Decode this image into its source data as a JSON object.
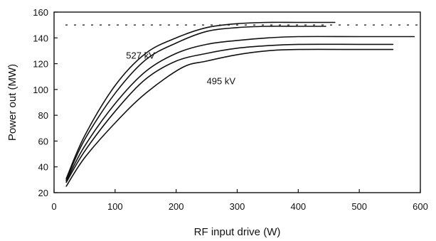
{
  "chart_data": {
    "type": "line",
    "title": "",
    "xlabel": "RF input drive  (W)",
    "ylabel": "Power out  (MW)",
    "xlim": [
      0,
      600
    ],
    "ylim": [
      20,
      160
    ],
    "xticks": [
      0,
      100,
      200,
      300,
      400,
      500,
      600
    ],
    "yticks": [
      20,
      40,
      60,
      80,
      100,
      120,
      140,
      160
    ],
    "grid": false,
    "reference_line": {
      "y": 150,
      "style": "dashed"
    },
    "annotations": [
      {
        "text": "527 kV",
        "x": 118,
        "y": 124
      },
      {
        "text": "495 kV",
        "x": 250,
        "y": 104
      }
    ],
    "series": [
      {
        "x": [
          20,
          50,
          100,
          150,
          200,
          250,
          300,
          350,
          400,
          460
        ],
        "y": [
          31,
          64,
          103,
          128,
          140,
          148,
          151,
          152,
          152,
          152
        ]
      },
      {
        "x": [
          20,
          50,
          100,
          150,
          200,
          250,
          300,
          350,
          400,
          445
        ],
        "y": [
          30,
          61,
          97,
          123,
          136,
          145,
          148,
          149,
          149,
          149
        ]
      },
      {
        "x": [
          20,
          50,
          100,
          150,
          200,
          250,
          300,
          350,
          400,
          500,
          590
        ],
        "y": [
          29,
          56,
          89,
          114,
          128,
          135,
          138,
          140,
          141,
          141,
          141
        ]
      },
      {
        "x": [
          20,
          50,
          100,
          150,
          200,
          250,
          300,
          350,
          400,
          500,
          555
        ],
        "y": [
          28,
          52,
          83,
          108,
          122,
          128,
          132,
          134,
          135,
          135,
          135
        ]
      },
      {
        "x": [
          20,
          50,
          100,
          150,
          210,
          250,
          300,
          350,
          400,
          500,
          555
        ],
        "y": [
          25,
          47,
          74,
          97,
          117,
          122,
          127,
          130,
          131,
          131,
          131
        ]
      }
    ]
  }
}
